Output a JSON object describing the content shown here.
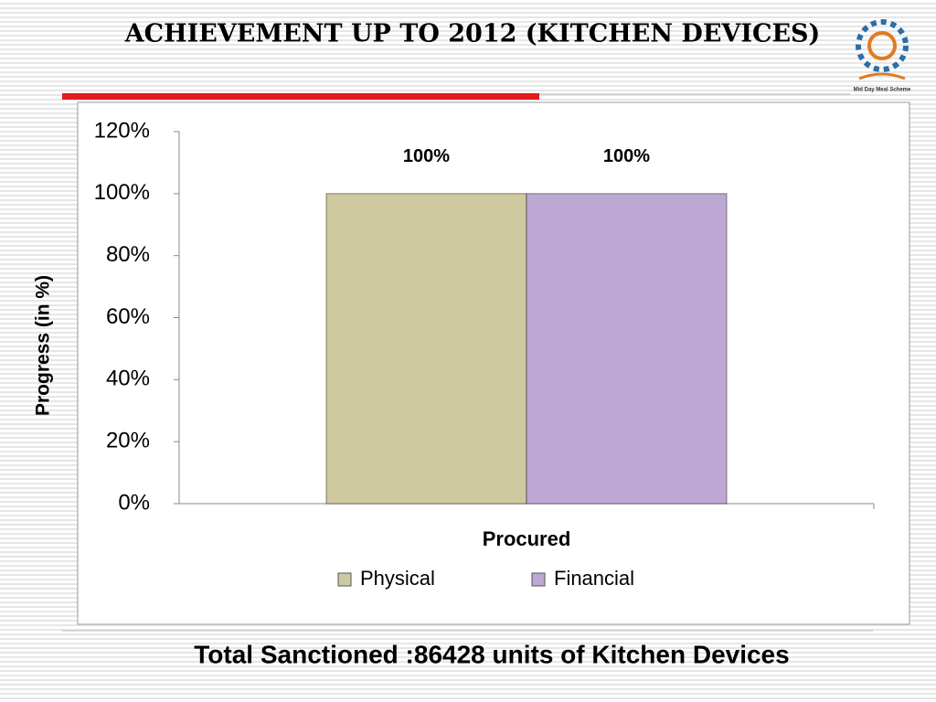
{
  "chart_data": {
    "type": "bar",
    "title": "ACHIEVEMENT UP TO 2012 (KITCHEN DEVICES)",
    "logo_text": "Mid Day Meal Scheme",
    "ylabel": "Progress (in %)",
    "categories": [
      "Procured"
    ],
    "series": [
      {
        "name": "Physical",
        "color": "#cfc9a0",
        "values": [
          100
        ],
        "value_labels": [
          "100%"
        ]
      },
      {
        "name": "Financial",
        "color": "#bca8d3",
        "values": [
          100
        ],
        "value_labels": [
          "100%"
        ]
      }
    ],
    "ylim": [
      0,
      120
    ],
    "yticks": [
      {
        "value": 0,
        "label": "0%"
      },
      {
        "value": 20,
        "label": "20%"
      },
      {
        "value": 40,
        "label": "40%"
      },
      {
        "value": 60,
        "label": "60%"
      },
      {
        "value": 80,
        "label": "80%"
      },
      {
        "value": 100,
        "label": "100%"
      },
      {
        "value": 120,
        "label": "120%"
      }
    ],
    "legend": "bottom",
    "footer": "Total Sanctioned :86428 units of Kitchen Devices"
  }
}
